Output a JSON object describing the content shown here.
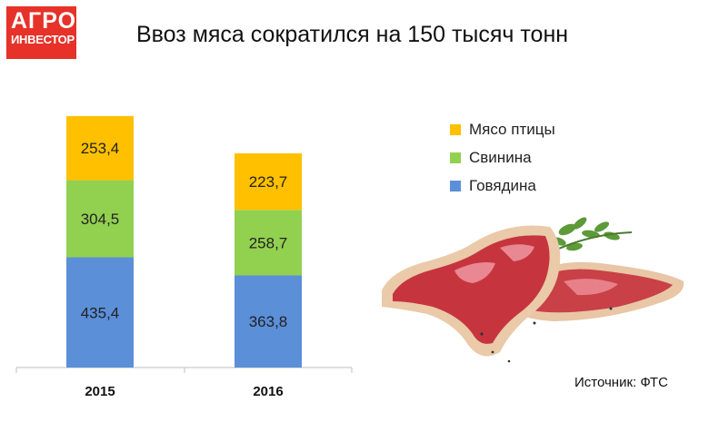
{
  "logo": {
    "line1": "АГРО",
    "line2": "ИНВЕСТОР"
  },
  "source": "Источник: ФТС",
  "chart_data": {
    "type": "bar",
    "stacked": true,
    "title": "Ввоз мяса сократился на 150 тысяч тонн",
    "categories": [
      "2015",
      "2016"
    ],
    "series": [
      {
        "name": "Говядина",
        "color": "#5b8fd8",
        "values": [
          435.4,
          363.8
        ],
        "labels": [
          "435,4",
          "363,8"
        ]
      },
      {
        "name": "Свинина",
        "color": "#92d050",
        "values": [
          304.5,
          258.7
        ],
        "labels": [
          "304,5",
          "258,7"
        ]
      },
      {
        "name": "Мясо птицы",
        "color": "#ffc000",
        "values": [
          253.4,
          223.7
        ],
        "labels": [
          "253,4",
          "223,7"
        ]
      }
    ],
    "ylim": [
      0,
      1000
    ],
    "grid": false,
    "legend_position": "right"
  }
}
